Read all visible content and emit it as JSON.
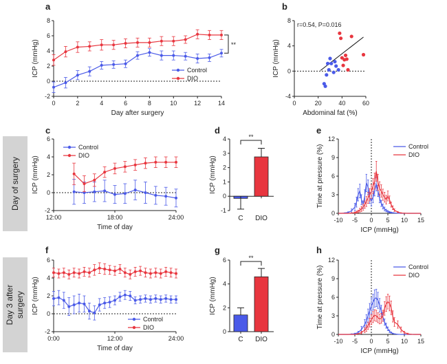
{
  "colors": {
    "control": "#4a5ae8",
    "dio": "#e8363f",
    "axis": "#222222",
    "row_label_bg": "#d3d3d3"
  },
  "row_labels": {
    "day_of_surgery": "Day of surgery",
    "day3_line1": "Day 3 after",
    "day3_line2": "surgery"
  },
  "chart_data": [
    {
      "panel": "a",
      "type": "line",
      "xlabel": "Day after surgery",
      "ylabel": "ICP (mmHg)",
      "xlim": [
        0,
        14
      ],
      "ylim": [
        -2,
        8
      ],
      "xticks": [
        0,
        2,
        4,
        6,
        8,
        10,
        12,
        14
      ],
      "yticks": [
        -2,
        0,
        2,
        4,
        6,
        8
      ],
      "xtick_labels": [
        "0",
        "2",
        "4",
        "6",
        "8",
        "10",
        "12",
        "14"
      ],
      "ytick_labels": [
        "-2",
        "0",
        "2",
        "4",
        "6",
        "8"
      ],
      "reference_line_y": 0,
      "x": [
        0,
        1,
        2,
        3,
        4,
        5,
        6,
        7,
        8,
        9,
        10,
        11,
        12,
        13,
        14
      ],
      "series": [
        {
          "name": "Control",
          "color_key": "control",
          "marker": "circle",
          "values": [
            -0.8,
            -0.2,
            0.8,
            1.3,
            2.1,
            2.2,
            2.3,
            3.4,
            3.8,
            3.4,
            3.4,
            3.3,
            3.0,
            3.1,
            3.7
          ],
          "errors": [
            0.7,
            0.7,
            0.6,
            0.6,
            0.5,
            0.5,
            0.5,
            0.5,
            0.5,
            0.6,
            0.6,
            0.5,
            0.6,
            0.5,
            0.5
          ]
        },
        {
          "name": "DIO",
          "color_key": "dio",
          "marker": "circle",
          "values": [
            2.8,
            3.9,
            4.5,
            4.6,
            4.8,
            4.8,
            5.0,
            5.1,
            5.1,
            5.3,
            5.3,
            5.5,
            6.2,
            6.1,
            6.1
          ],
          "errors": [
            0.7,
            0.7,
            0.7,
            0.6,
            0.7,
            0.6,
            0.6,
            0.6,
            0.6,
            0.6,
            0.6,
            0.5,
            0.6,
            0.6,
            0.6
          ]
        }
      ],
      "legend": [
        "Control",
        "DIO"
      ],
      "legend_position": "bottom-right",
      "significance": "**"
    },
    {
      "panel": "b",
      "type": "scatter",
      "xlabel": "Abdominal fat (%)",
      "ylabel": "ICP (mmHg)",
      "xlim": [
        0,
        60
      ],
      "ylim": [
        -4,
        8
      ],
      "xticks": [
        0,
        20,
        40,
        60
      ],
      "yticks": [
        -4,
        0,
        4,
        8
      ],
      "xtick_labels": [
        "0",
        "20",
        "40",
        "60"
      ],
      "ytick_labels": [
        "-4",
        "0",
        "4",
        "8"
      ],
      "reference_line_y": 0,
      "annotation": "r=0.54, P=0.016",
      "regression_line": {
        "x": [
          22,
          58
        ],
        "y": [
          0.1,
          5.4
        ]
      },
      "series": [
        {
          "name": "Control",
          "color_key": "control",
          "points": [
            [
              25,
              -2.0
            ],
            [
              26,
              -2.4
            ],
            [
              27,
              -0.6
            ],
            [
              28,
              1.2
            ],
            [
              29,
              0.2
            ],
            [
              30,
              2.0
            ],
            [
              31,
              1.2
            ],
            [
              33,
              -0.2
            ],
            [
              34,
              1.5
            ],
            [
              35,
              0.8
            ],
            [
              37,
              0.2
            ]
          ]
        },
        {
          "name": "DIO",
          "color_key": "dio",
          "points": [
            [
              38,
              6.0
            ],
            [
              39,
              5.2
            ],
            [
              40,
              2.1
            ],
            [
              41,
              0.9
            ],
            [
              42,
              1.8
            ],
            [
              43,
              2.5
            ],
            [
              44,
              1.9
            ],
            [
              45,
              0.2
            ],
            [
              48,
              5.5
            ],
            [
              58,
              2.6
            ]
          ]
        }
      ]
    },
    {
      "panel": "c",
      "type": "line",
      "xlabel": "Time of day",
      "ylabel": "ICP (mmHg)",
      "xlim": [
        12,
        24
      ],
      "ylim": [
        -2,
        6
      ],
      "xticks": [
        12,
        18,
        24
      ],
      "yticks": [
        -2,
        0,
        2,
        4,
        6
      ],
      "xtick_labels": [
        "12:00",
        "18:00",
        "24:00"
      ],
      "ytick_labels": [
        "-2",
        "0",
        "2",
        "4",
        "6"
      ],
      "reference_line_y": 0,
      "series": [
        {
          "name": "Control",
          "color_key": "control",
          "marker": "circle",
          "x": [
            14,
            15,
            16,
            17,
            18,
            19,
            20,
            21,
            22,
            23,
            24
          ],
          "values": [
            0.1,
            0.0,
            0.1,
            0.2,
            -0.2,
            -0.1,
            0.3,
            0.0,
            -0.3,
            -0.4,
            -0.6
          ],
          "errors": [
            1.4,
            1.2,
            1.1,
            1.2,
            1.0,
            1.1,
            1.1,
            1.2,
            1.0,
            1.0,
            1.0
          ]
        },
        {
          "name": "DIO",
          "color_key": "dio",
          "marker": "circle",
          "x": [
            14,
            15,
            16,
            17,
            18,
            19,
            20,
            21,
            22,
            23,
            24
          ],
          "values": [
            2.1,
            1.0,
            1.4,
            2.3,
            2.7,
            2.9,
            3.1,
            3.3,
            3.4,
            3.4,
            3.4
          ],
          "errors": [
            1.2,
            0.9,
            0.7,
            0.6,
            0.6,
            0.6,
            0.6,
            0.6,
            0.6,
            0.6,
            0.6
          ]
        }
      ],
      "legend": [
        "Control",
        "DIO"
      ],
      "legend_position": "top-left"
    },
    {
      "panel": "d",
      "type": "bar",
      "ylabel": "ICP (mmHg)",
      "ylim": [
        -1,
        4
      ],
      "yticks": [
        -1,
        0,
        1,
        2,
        3,
        4
      ],
      "ytick_labels": [
        "-1",
        "0",
        "1",
        "2",
        "3",
        "4"
      ],
      "categories": [
        "C",
        "DIO"
      ],
      "values": [
        -0.15,
        2.75
      ],
      "errors": [
        0.75,
        0.6
      ],
      "bar_color_keys": [
        "control",
        "dio"
      ],
      "significance": "**"
    },
    {
      "panel": "e",
      "type": "line",
      "xlabel": "ICP (mmHg)",
      "ylabel": "Time at pressure (%)",
      "xlim": [
        -10,
        15
      ],
      "ylim": [
        0,
        12
      ],
      "xticks": [
        -10,
        -5,
        0,
        5,
        10,
        15
      ],
      "yticks": [
        0,
        3,
        6,
        9,
        12
      ],
      "xtick_labels": [
        "-10",
        "-5",
        "0",
        "5",
        "10",
        "15"
      ],
      "ytick_labels": [
        "0",
        "3",
        "6",
        "9",
        "12"
      ],
      "reference_line_x": 0,
      "x": [
        -10,
        -9,
        -8,
        -7,
        -6,
        -5,
        -4.5,
        -4,
        -3.5,
        -3,
        -2.5,
        -2,
        -1.5,
        -1,
        -0.5,
        0,
        0.5,
        1,
        1.5,
        2,
        2.5,
        3,
        3.5,
        4,
        4.5,
        5,
        5.5,
        6,
        6.5,
        7,
        8,
        9,
        10,
        11,
        12,
        13,
        14,
        15
      ],
      "series": [
        {
          "name": "Control",
          "color_key": "control",
          "values": [
            0,
            0,
            0.05,
            0.15,
            0.4,
            1.0,
            1.8,
            3.0,
            3.6,
            2.2,
            1.4,
            2.8,
            4.9,
            4.2,
            2.5,
            2.0,
            2.6,
            3.8,
            4.7,
            3.6,
            2.4,
            1.6,
            1.1,
            0.7,
            0.45,
            0.3,
            0.2,
            0.12,
            0.08,
            0.05,
            0.02,
            0,
            0,
            0,
            0,
            0,
            0,
            0
          ],
          "errors": [
            0,
            0,
            0.05,
            0.1,
            0.3,
            0.6,
            0.8,
            1.0,
            1.1,
            0.8,
            0.6,
            1.0,
            1.4,
            1.2,
            0.9,
            0.8,
            0.9,
            1.0,
            1.1,
            0.9,
            0.7,
            0.5,
            0.4,
            0.3,
            0.2,
            0.15,
            0.1,
            0.08,
            0.05,
            0.03,
            0.02,
            0,
            0,
            0,
            0,
            0,
            0,
            0
          ]
        },
        {
          "name": "DIO",
          "color_key": "dio",
          "values": [
            0,
            0,
            0,
            0,
            0.05,
            0.1,
            0.2,
            0.3,
            0.5,
            0.7,
            1.0,
            1.4,
            1.9,
            2.5,
            3.0,
            3.5,
            4.4,
            5.2,
            6.8,
            5.0,
            4.0,
            3.6,
            3.0,
            2.6,
            2.2,
            2.8,
            2.2,
            1.4,
            0.9,
            0.5,
            0.2,
            0.05,
            0.02,
            0,
            0,
            0,
            0,
            0
          ],
          "errors": [
            0,
            0,
            0,
            0,
            0.05,
            0.1,
            0.15,
            0.2,
            0.3,
            0.4,
            0.5,
            0.6,
            0.8,
            0.9,
            1.0,
            1.1,
            1.2,
            1.3,
            1.6,
            1.3,
            1.1,
            1.0,
            0.9,
            0.8,
            0.7,
            0.8,
            0.6,
            0.4,
            0.3,
            0.2,
            0.1,
            0.05,
            0.02,
            0,
            0,
            0,
            0,
            0
          ]
        }
      ],
      "legend": [
        "Control",
        "DIO"
      ],
      "legend_position": "top-right"
    },
    {
      "panel": "f",
      "type": "line",
      "xlabel": "Time of day",
      "ylabel": "ICP (mmHg)",
      "xlim": [
        0,
        24
      ],
      "ylim": [
        -2,
        6
      ],
      "xticks": [
        0,
        12,
        24
      ],
      "yticks": [
        -2,
        0,
        2,
        4,
        6
      ],
      "xtick_labels": [
        "0:00",
        "12:00",
        "24:00"
      ],
      "ytick_labels": [
        "-2",
        "0",
        "2",
        "4",
        "6"
      ],
      "reference_line_y": 0,
      "x": [
        0,
        1,
        2,
        3,
        4,
        5,
        6,
        7,
        8,
        9,
        10,
        11,
        12,
        13,
        14,
        15,
        16,
        17,
        18,
        19,
        20,
        21,
        22,
        23,
        24
      ],
      "series": [
        {
          "name": "Control",
          "color_key": "control",
          "marker": "circle",
          "values": [
            1.7,
            1.8,
            1.5,
            0.8,
            1.0,
            1.2,
            1.1,
            0.3,
            0.1,
            1.0,
            1.2,
            1.3,
            1.5,
            1.9,
            2.1,
            2.0,
            1.5,
            1.6,
            1.7,
            1.6,
            1.7,
            1.6,
            1.7,
            1.6,
            1.6
          ],
          "errors": [
            0.8,
            0.8,
            0.9,
            1.0,
            1.0,
            1.0,
            0.9,
            0.9,
            0.8,
            0.7,
            0.6,
            0.6,
            0.5,
            0.5,
            0.5,
            0.5,
            0.4,
            0.4,
            0.4,
            0.4,
            0.4,
            0.4,
            0.4,
            0.4,
            0.4
          ]
        },
        {
          "name": "DIO",
          "color_key": "dio",
          "marker": "circle",
          "values": [
            4.6,
            4.5,
            4.6,
            4.4,
            4.6,
            4.5,
            4.7,
            4.6,
            4.9,
            5.1,
            5.0,
            4.9,
            4.8,
            5.0,
            4.6,
            4.4,
            4.7,
            4.8,
            4.6,
            4.5,
            4.6,
            4.5,
            4.7,
            4.6,
            4.5
          ],
          "errors": [
            0.5,
            0.5,
            0.5,
            0.5,
            0.5,
            0.5,
            0.5,
            0.5,
            0.6,
            0.6,
            0.6,
            0.5,
            0.5,
            0.5,
            0.5,
            0.5,
            0.5,
            0.5,
            0.5,
            0.5,
            0.5,
            0.5,
            0.5,
            0.5,
            0.5
          ]
        }
      ],
      "legend": [
        "Control",
        "DIO"
      ],
      "legend_position": "bottom-right"
    },
    {
      "panel": "g",
      "type": "bar",
      "ylabel": "ICP (mmHg)",
      "ylim": [
        0,
        6
      ],
      "yticks": [
        0,
        2,
        4,
        6
      ],
      "ytick_labels": [
        "0",
        "2",
        "4",
        "6"
      ],
      "categories": [
        "C",
        "DIO"
      ],
      "values": [
        1.4,
        4.6
      ],
      "errors": [
        0.6,
        0.7
      ],
      "bar_color_keys": [
        "control",
        "dio"
      ],
      "significance": "**"
    },
    {
      "panel": "h",
      "type": "line",
      "xlabel": "ICP (mmHg)",
      "ylabel": "Time at pressure (%)",
      "xlim": [
        -10,
        15
      ],
      "ylim": [
        0,
        12
      ],
      "xticks": [
        -10,
        -5,
        0,
        5,
        10,
        15
      ],
      "yticks": [
        0,
        3,
        6,
        9,
        12
      ],
      "xtick_labels": [
        "-10",
        "-5",
        "0",
        "5",
        "10",
        "15"
      ],
      "ytick_labels": [
        "0",
        "3",
        "6",
        "9",
        "12"
      ],
      "reference_line_x": 0,
      "x": [
        -10,
        -9,
        -8,
        -7,
        -6,
        -5,
        -4,
        -3,
        -2,
        -1.5,
        -1,
        -0.5,
        0,
        0.5,
        1,
        1.5,
        2,
        2.5,
        3,
        3.5,
        4,
        4.5,
        5,
        5.5,
        6,
        6.5,
        7,
        8,
        9,
        10,
        11,
        12,
        13,
        14,
        15
      ],
      "series": [
        {
          "name": "Control",
          "color_key": "control",
          "values": [
            0,
            0,
            0,
            0,
            0.05,
            0.1,
            0.3,
            0.8,
            1.6,
            2.2,
            3.0,
            3.8,
            4.6,
            5.2,
            5.8,
            5.9,
            5.5,
            4.7,
            3.8,
            2.8,
            2.0,
            1.4,
            0.9,
            0.5,
            0.3,
            0.15,
            0.08,
            0.02,
            0,
            0,
            0,
            0,
            0,
            0,
            0
          ],
          "errors": [
            0,
            0,
            0,
            0,
            0.05,
            0.1,
            0.2,
            0.5,
            0.8,
            1.0,
            1.1,
            1.2,
            1.3,
            1.3,
            1.4,
            1.4,
            1.3,
            1.1,
            0.9,
            0.7,
            0.5,
            0.4,
            0.3,
            0.2,
            0.1,
            0.05,
            0.03,
            0.01,
            0,
            0,
            0,
            0,
            0,
            0,
            0
          ]
        },
        {
          "name": "DIO",
          "color_key": "dio",
          "values": [
            0,
            0,
            0,
            0,
            0,
            0,
            0.1,
            0.3,
            0.7,
            1.0,
            1.4,
            1.9,
            2.4,
            2.8,
            3.1,
            3.0,
            2.7,
            2.5,
            2.6,
            3.0,
            4.2,
            4.9,
            5.3,
            5.0,
            4.3,
            2.9,
            2.0,
            1.6,
            0.8,
            0.3,
            0.1,
            0.02,
            0,
            0,
            0
          ],
          "errors": [
            0,
            0,
            0,
            0,
            0,
            0,
            0.05,
            0.2,
            0.4,
            0.5,
            0.6,
            0.7,
            0.8,
            0.9,
            0.9,
            0.9,
            0.8,
            0.8,
            0.8,
            0.9,
            1.1,
            1.2,
            1.2,
            1.2,
            1.1,
            0.9,
            0.7,
            0.6,
            0.4,
            0.2,
            0.1,
            0.02,
            0,
            0,
            0
          ]
        }
      ],
      "legend": [
        "Control",
        "DIO"
      ],
      "legend_position": "top-right"
    }
  ]
}
